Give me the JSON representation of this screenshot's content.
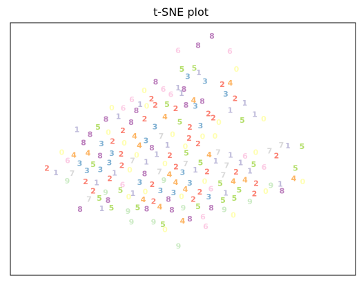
{
  "chart_data": {
    "type": "scatter",
    "title": "t-SNE plot",
    "xlabel": "",
    "ylabel": "",
    "xlim": [
      0,
      100
    ],
    "ylim": [
      0,
      100
    ],
    "grid": false,
    "xticks": [],
    "yticks": [],
    "marker": "digit label",
    "class_colors": {
      "1": "#bebada",
      "2": "#fb8072",
      "3": "#80b1d3",
      "4": "#fdb462",
      "5": "#b3de69",
      "6": "#fccde5",
      "7": "#d9d9d9",
      "8": "#bc80bd",
      "9": "#ccebc5",
      "0": "#ffffb3"
    },
    "points": [
      {
        "x": 54.4,
        "y": 91.0,
        "label": "8"
      },
      {
        "x": 58.4,
        "y": 94.7,
        "label": "8"
      },
      {
        "x": 48.6,
        "y": 88.9,
        "label": "6"
      },
      {
        "x": 63.6,
        "y": 88.6,
        "label": "6"
      },
      {
        "x": 49.7,
        "y": 81.5,
        "label": "5"
      },
      {
        "x": 53.3,
        "y": 82.0,
        "label": "5"
      },
      {
        "x": 54.6,
        "y": 80.2,
        "label": "1"
      },
      {
        "x": 65.5,
        "y": 81.6,
        "label": "0"
      },
      {
        "x": 51.4,
        "y": 78.7,
        "label": "3"
      },
      {
        "x": 56.4,
        "y": 76.8,
        "label": "3"
      },
      {
        "x": 61.4,
        "y": 75.6,
        "label": "2"
      },
      {
        "x": 63.7,
        "y": 76.1,
        "label": "4"
      },
      {
        "x": 42.1,
        "y": 76.5,
        "label": "8"
      },
      {
        "x": 50.3,
        "y": 73.6,
        "label": "8"
      },
      {
        "x": 48.6,
        "y": 74.2,
        "label": "1"
      },
      {
        "x": 44.3,
        "y": 73.6,
        "label": "6"
      },
      {
        "x": 40.9,
        "y": 69.8,
        "label": "2"
      },
      {
        "x": 46.5,
        "y": 71.6,
        "label": "6"
      },
      {
        "x": 49.6,
        "y": 72.0,
        "label": "1"
      },
      {
        "x": 38.8,
        "y": 73.1,
        "label": "0"
      },
      {
        "x": 53.1,
        "y": 69.3,
        "label": "4"
      },
      {
        "x": 55.6,
        "y": 68.8,
        "label": "8"
      },
      {
        "x": 62.4,
        "y": 71.7,
        "label": "3"
      },
      {
        "x": 65.1,
        "y": 70.0,
        "label": "2"
      },
      {
        "x": 67.9,
        "y": 68.2,
        "label": "1"
      },
      {
        "x": 35.2,
        "y": 69.6,
        "label": "6"
      },
      {
        "x": 37.6,
        "y": 67.6,
        "label": "1"
      },
      {
        "x": 32.7,
        "y": 66.1,
        "label": "6"
      },
      {
        "x": 29.4,
        "y": 66.3,
        "label": "0"
      },
      {
        "x": 36.5,
        "y": 65.2,
        "label": "8"
      },
      {
        "x": 39.5,
        "y": 66.9,
        "label": "0"
      },
      {
        "x": 42.0,
        "y": 67.3,
        "label": "2"
      },
      {
        "x": 45.4,
        "y": 67.6,
        "label": "5"
      },
      {
        "x": 47.9,
        "y": 66.0,
        "label": "2"
      },
      {
        "x": 50.9,
        "y": 67.3,
        "label": "8"
      },
      {
        "x": 53.6,
        "y": 67.0,
        "label": "3"
      },
      {
        "x": 57.4,
        "y": 64.0,
        "label": "2"
      },
      {
        "x": 63.7,
        "y": 65.3,
        "label": "1"
      },
      {
        "x": 70.8,
        "y": 63.6,
        "label": "1"
      },
      {
        "x": 73.4,
        "y": 61.9,
        "label": "0"
      },
      {
        "x": 67.2,
        "y": 61.4,
        "label": "5"
      },
      {
        "x": 27.7,
        "y": 61.7,
        "label": "8"
      },
      {
        "x": 31.3,
        "y": 62.8,
        "label": "1"
      },
      {
        "x": 25.4,
        "y": 58.6,
        "label": "5"
      },
      {
        "x": 35.0,
        "y": 60.5,
        "label": "8"
      },
      {
        "x": 38.9,
        "y": 61.9,
        "label": "2"
      },
      {
        "x": 41.9,
        "y": 58.7,
        "label": "3"
      },
      {
        "x": 44.8,
        "y": 62.7,
        "label": "4"
      },
      {
        "x": 49.1,
        "y": 60.6,
        "label": "5"
      },
      {
        "x": 52.0,
        "y": 58.6,
        "label": "2"
      },
      {
        "x": 55.1,
        "y": 59.1,
        "label": "3"
      },
      {
        "x": 58.8,
        "y": 62.3,
        "label": "2"
      },
      {
        "x": 60.4,
        "y": 60.5,
        "label": "0"
      },
      {
        "x": 19.3,
        "y": 57.6,
        "label": "1"
      },
      {
        "x": 23.1,
        "y": 55.8,
        "label": "8"
      },
      {
        "x": 28.4,
        "y": 56.5,
        "label": "0"
      },
      {
        "x": 32.6,
        "y": 57.3,
        "label": "2"
      },
      {
        "x": 36.0,
        "y": 55.0,
        "label": "4"
      },
      {
        "x": 39.3,
        "y": 53.3,
        "label": "3"
      },
      {
        "x": 43.7,
        "y": 55.1,
        "label": "7"
      },
      {
        "x": 47.0,
        "y": 55.7,
        "label": "0"
      },
      {
        "x": 51.8,
        "y": 54.2,
        "label": "2"
      },
      {
        "x": 55.7,
        "y": 54.9,
        "label": "0"
      },
      {
        "x": 59.3,
        "y": 55.1,
        "label": "0"
      },
      {
        "x": 21.2,
        "y": 52.4,
        "label": "8"
      },
      {
        "x": 26.4,
        "y": 52.0,
        "label": "3"
      },
      {
        "x": 29.6,
        "y": 53.0,
        "label": "2"
      },
      {
        "x": 33.0,
        "y": 52.3,
        "label": "0"
      },
      {
        "x": 37.4,
        "y": 51.4,
        "label": "4"
      },
      {
        "x": 41.0,
        "y": 50.4,
        "label": "8"
      },
      {
        "x": 45.5,
        "y": 51.5,
        "label": "1"
      },
      {
        "x": 50.7,
        "y": 50.9,
        "label": "0"
      },
      {
        "x": 54.4,
        "y": 52.1,
        "label": "2"
      },
      {
        "x": 14.9,
        "y": 48.6,
        "label": "0"
      },
      {
        "x": 18.4,
        "y": 47.5,
        "label": "4"
      },
      {
        "x": 22.5,
        "y": 48.3,
        "label": "4"
      },
      {
        "x": 26.0,
        "y": 47.3,
        "label": "8"
      },
      {
        "x": 29.4,
        "y": 48.2,
        "label": "3"
      },
      {
        "x": 32.1,
        "y": 47.9,
        "label": "2"
      },
      {
        "x": 36.6,
        "y": 47.5,
        "label": "0"
      },
      {
        "x": 42.4,
        "y": 47.8,
        "label": "1"
      },
      {
        "x": 46.2,
        "y": 47.4,
        "label": "2"
      },
      {
        "x": 51.0,
        "y": 48.4,
        "label": "5"
      },
      {
        "x": 57.6,
        "y": 47.7,
        "label": "4"
      },
      {
        "x": 60.2,
        "y": 48.7,
        "label": "7"
      },
      {
        "x": 63.8,
        "y": 47.5,
        "label": "1"
      },
      {
        "x": 68.0,
        "y": 47.1,
        "label": "6"
      },
      {
        "x": 71.1,
        "y": 48.6,
        "label": "0"
      },
      {
        "x": 75.1,
        "y": 49.2,
        "label": "7"
      },
      {
        "x": 78.5,
        "y": 51.5,
        "label": "7"
      },
      {
        "x": 80.4,
        "y": 51.2,
        "label": "1"
      },
      {
        "x": 84.5,
        "y": 51.0,
        "label": "5"
      },
      {
        "x": 77.1,
        "y": 47.3,
        "label": "2"
      },
      {
        "x": 16.6,
        "y": 45.4,
        "label": "6"
      },
      {
        "x": 20.1,
        "y": 44.2,
        "label": "3"
      },
      {
        "x": 24.0,
        "y": 43.8,
        "label": "5"
      },
      {
        "x": 28.7,
        "y": 44.5,
        "label": "3"
      },
      {
        "x": 32.3,
        "y": 43.4,
        "label": "2"
      },
      {
        "x": 35.4,
        "y": 45.3,
        "label": "7"
      },
      {
        "x": 39.4,
        "y": 44.8,
        "label": "1"
      },
      {
        "x": 44.8,
        "y": 44.1,
        "label": "0"
      },
      {
        "x": 48.0,
        "y": 42.9,
        "label": "2"
      },
      {
        "x": 50.8,
        "y": 44.1,
        "label": "7"
      },
      {
        "x": 55.1,
        "y": 44.6,
        "label": "5"
      },
      {
        "x": 59.5,
        "y": 45.2,
        "label": "1"
      },
      {
        "x": 62.7,
        "y": 43.4,
        "label": "7"
      },
      {
        "x": 66.7,
        "y": 44.6,
        "label": "1"
      },
      {
        "x": 70.5,
        "y": 43.9,
        "label": "5"
      },
      {
        "x": 73.5,
        "y": 42.7,
        "label": "6"
      },
      {
        "x": 10.6,
        "y": 42.3,
        "label": "2"
      },
      {
        "x": 13.2,
        "y": 40.6,
        "label": "1"
      },
      {
        "x": 17.9,
        "y": 40.3,
        "label": "7"
      },
      {
        "x": 22.2,
        "y": 41.4,
        "label": "3"
      },
      {
        "x": 26.1,
        "y": 41.8,
        "label": "3"
      },
      {
        "x": 30.2,
        "y": 40.4,
        "label": "1"
      },
      {
        "x": 34.6,
        "y": 41.6,
        "label": "0"
      },
      {
        "x": 38.9,
        "y": 40.2,
        "label": "8"
      },
      {
        "x": 43.2,
        "y": 41.0,
        "label": "7"
      },
      {
        "x": 46.1,
        "y": 39.9,
        "label": "4"
      },
      {
        "x": 49.9,
        "y": 40.7,
        "label": "3"
      },
      {
        "x": 53.6,
        "y": 41.7,
        "label": "1"
      },
      {
        "x": 57.0,
        "y": 41.0,
        "label": "2"
      },
      {
        "x": 61.7,
        "y": 39.6,
        "label": "7"
      },
      {
        "x": 65.4,
        "y": 40.9,
        "label": "2"
      },
      {
        "x": 69.4,
        "y": 41.2,
        "label": "1"
      },
      {
        "x": 82.6,
        "y": 42.3,
        "label": "5"
      },
      {
        "x": 16.5,
        "y": 37.3,
        "label": "9"
      },
      {
        "x": 21.8,
        "y": 37.0,
        "label": "2"
      },
      {
        "x": 25.0,
        "y": 36.6,
        "label": "1"
      },
      {
        "x": 28.8,
        "y": 38.2,
        "label": "2"
      },
      {
        "x": 32.5,
        "y": 35.8,
        "label": "6"
      },
      {
        "x": 37.5,
        "y": 36.8,
        "label": "3"
      },
      {
        "x": 41.1,
        "y": 35.9,
        "label": "2"
      },
      {
        "x": 44.5,
        "y": 37.6,
        "label": "9"
      },
      {
        "x": 47.9,
        "y": 36.8,
        "label": "4"
      },
      {
        "x": 52.0,
        "y": 36.5,
        "label": "3"
      },
      {
        "x": 56.3,
        "y": 37.1,
        "label": "0"
      },
      {
        "x": 60.8,
        "y": 36.3,
        "label": "5"
      },
      {
        "x": 64.6,
        "y": 37.2,
        "label": "4"
      },
      {
        "x": 68.0,
        "y": 37.7,
        "label": "4"
      },
      {
        "x": 71.2,
        "y": 36.4,
        "label": "2"
      },
      {
        "x": 75.5,
        "y": 35.5,
        "label": "9"
      },
      {
        "x": 78.2,
        "y": 36.1,
        "label": "1"
      },
      {
        "x": 82.1,
        "y": 38.3,
        "label": "4"
      },
      {
        "x": 84.7,
        "y": 37.0,
        "label": "0"
      },
      {
        "x": 24.0,
        "y": 33.4,
        "label": "2"
      },
      {
        "x": 27.6,
        "y": 32.8,
        "label": "9"
      },
      {
        "x": 31.9,
        "y": 33.6,
        "label": "5"
      },
      {
        "x": 35.5,
        "y": 32.4,
        "label": "1"
      },
      {
        "x": 39.1,
        "y": 33.1,
        "label": "0"
      },
      {
        "x": 43.5,
        "y": 33.5,
        "label": "3"
      },
      {
        "x": 47.3,
        "y": 32.7,
        "label": "3"
      },
      {
        "x": 50.7,
        "y": 34.0,
        "label": "4"
      },
      {
        "x": 54.9,
        "y": 32.9,
        "label": "2"
      },
      {
        "x": 58.1,
        "y": 34.2,
        "label": "6"
      },
      {
        "x": 62.4,
        "y": 32.5,
        "label": "1"
      },
      {
        "x": 66.3,
        "y": 33.7,
        "label": "5"
      },
      {
        "x": 70.7,
        "y": 32.2,
        "label": "2"
      },
      {
        "x": 74.0,
        "y": 33.2,
        "label": "0"
      },
      {
        "x": 78.7,
        "y": 33.3,
        "label": "8"
      },
      {
        "x": 22.8,
        "y": 30.1,
        "label": "7"
      },
      {
        "x": 25.8,
        "y": 30.5,
        "label": "5"
      },
      {
        "x": 28.3,
        "y": 29.6,
        "label": "8"
      },
      {
        "x": 34.3,
        "y": 31.0,
        "label": "0"
      },
      {
        "x": 38.5,
        "y": 29.9,
        "label": "4"
      },
      {
        "x": 41.5,
        "y": 29.3,
        "label": "2"
      },
      {
        "x": 45.8,
        "y": 30.1,
        "label": "8"
      },
      {
        "x": 49.6,
        "y": 31.1,
        "label": "0"
      },
      {
        "x": 53.0,
        "y": 30.0,
        "label": "2"
      },
      {
        "x": 57.5,
        "y": 31.0,
        "label": "3"
      },
      {
        "x": 61.6,
        "y": 29.7,
        "label": "5"
      },
      {
        "x": 64.9,
        "y": 30.4,
        "label": "5"
      },
      {
        "x": 69.4,
        "y": 29.1,
        "label": "9"
      },
      {
        "x": 20.2,
        "y": 26.1,
        "label": "8"
      },
      {
        "x": 26.5,
        "y": 26.3,
        "label": "1"
      },
      {
        "x": 29.3,
        "y": 26.7,
        "label": "5"
      },
      {
        "x": 34.1,
        "y": 25.3,
        "label": "9"
      },
      {
        "x": 36.9,
        "y": 26.8,
        "label": "5"
      },
      {
        "x": 39.5,
        "y": 26.2,
        "label": "8"
      },
      {
        "x": 43.3,
        "y": 27.1,
        "label": "4"
      },
      {
        "x": 46.8,
        "y": 25.8,
        "label": "8"
      },
      {
        "x": 50.1,
        "y": 26.6,
        "label": "9"
      },
      {
        "x": 54.4,
        "y": 27.2,
        "label": "5"
      },
      {
        "x": 58.2,
        "y": 26.6,
        "label": "8"
      },
      {
        "x": 62.0,
        "y": 25.9,
        "label": "9"
      },
      {
        "x": 64.6,
        "y": 23.8,
        "label": "0"
      },
      {
        "x": 35.1,
        "y": 21.1,
        "label": "9"
      },
      {
        "x": 41.5,
        "y": 21.0,
        "label": "9"
      },
      {
        "x": 44.2,
        "y": 20.1,
        "label": "5"
      },
      {
        "x": 49.9,
        "y": 21.5,
        "label": "4"
      },
      {
        "x": 52.0,
        "y": 22.3,
        "label": "8"
      },
      {
        "x": 55.8,
        "y": 23.1,
        "label": "6"
      },
      {
        "x": 44.8,
        "y": 18.1,
        "label": "0"
      },
      {
        "x": 56.6,
        "y": 19.3,
        "label": "6"
      },
      {
        "x": 48.7,
        "y": 11.5,
        "label": "9"
      }
    ]
  }
}
